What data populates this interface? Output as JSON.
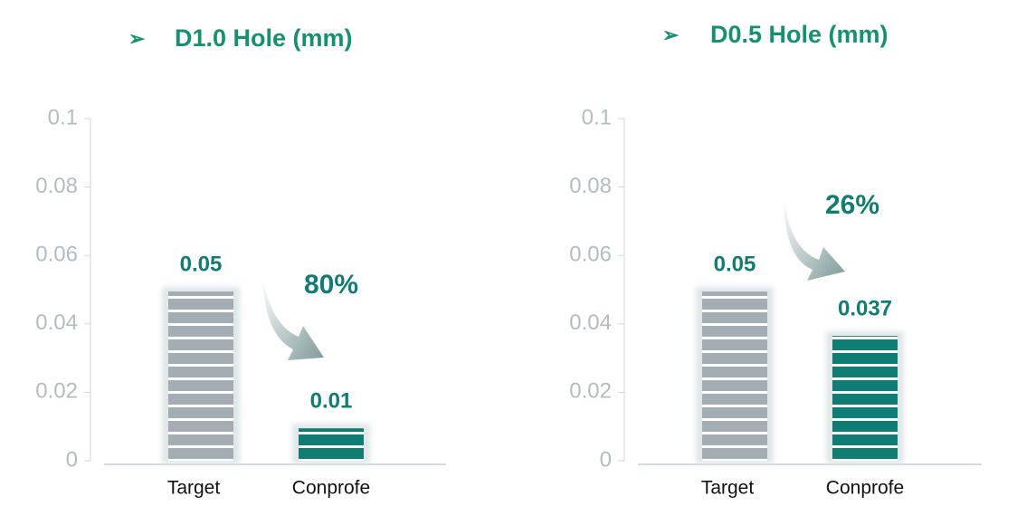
{
  "chart_data": [
    {
      "type": "bar",
      "title": "D1.0 Hole (mm)",
      "categories": [
        "Target",
        "Conprofe"
      ],
      "values": [
        0.05,
        0.01
      ],
      "colors": [
        "#a3adb3",
        "#0f7d73"
      ],
      "ylim": [
        0,
        0.1
      ],
      "yticks": [
        0,
        0.02,
        0.04,
        0.06,
        0.08,
        0.1
      ],
      "annotation": "80%"
    },
    {
      "type": "bar",
      "title": "D0.5 Hole (mm)",
      "categories": [
        "Target",
        "Conprofe"
      ],
      "values": [
        0.05,
        0.037
      ],
      "colors": [
        "#a3adb3",
        "#0f7d73"
      ],
      "ylim": [
        0,
        0.1
      ],
      "yticks": [
        0,
        0.02,
        0.04,
        0.06,
        0.08,
        0.1
      ],
      "annotation": "26%"
    }
  ]
}
